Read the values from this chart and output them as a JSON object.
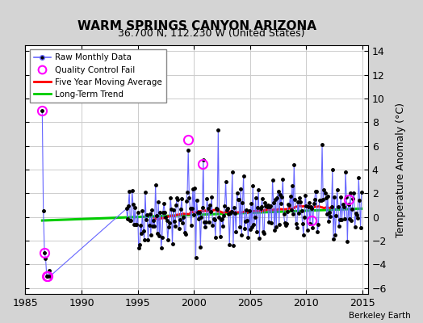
{
  "title": "WARM SPRINGS CANYON ARIZONA",
  "subtitle": "36.700 N, 112.230 W (United States)",
  "ylabel": "Temperature Anomaly (°C)",
  "attribution": "Berkeley Earth",
  "xlim": [
    1985,
    2015.5
  ],
  "ylim": [
    -6.5,
    14.5
  ],
  "yticks": [
    -6,
    -4,
    -2,
    0,
    2,
    4,
    6,
    8,
    10,
    12,
    14
  ],
  "xticks": [
    1985,
    1990,
    1995,
    2000,
    2005,
    2010,
    2015
  ],
  "fig_bg_color": "#d4d4d4",
  "plot_bg_color": "#ffffff",
  "raw_line_color": "#6666ff",
  "raw_dot_color": "#000000",
  "qc_color": "#ff00ff",
  "moving_avg_color": "#ff0000",
  "trend_color": "#00cc00",
  "grid_color": "#cccccc",
  "seed": 42
}
